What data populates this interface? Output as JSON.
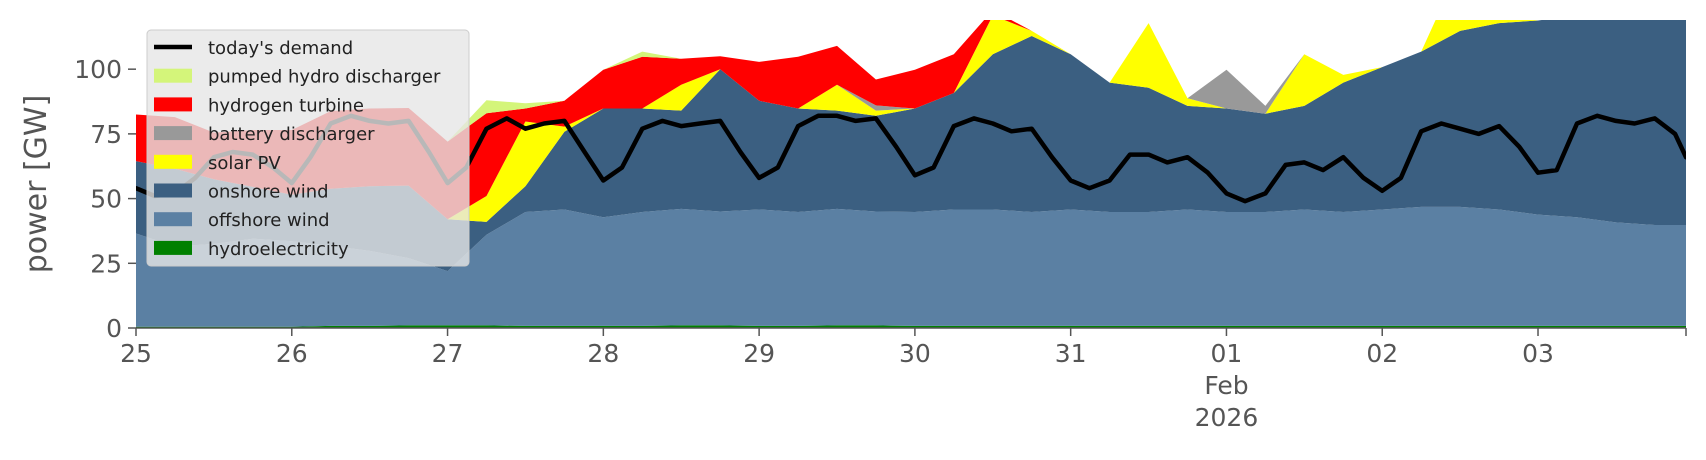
{
  "chart_data": {
    "type": "area",
    "ylabel": "power [GW]",
    "ylim": [
      0,
      119
    ],
    "yticks": [
      0,
      25,
      50,
      75,
      100
    ],
    "xlim_days": [
      25,
      34.95
    ],
    "xticks": [
      {
        "day": 25,
        "label": "25"
      },
      {
        "day": 26,
        "label": "26"
      },
      {
        "day": 27,
        "label": "27"
      },
      {
        "day": 28,
        "label": "28"
      },
      {
        "day": 29,
        "label": "29"
      },
      {
        "day": 30,
        "label": "30"
      },
      {
        "day": 31,
        "label": "31"
      },
      {
        "day": 32,
        "label": "01"
      },
      {
        "day": 33,
        "label": "02"
      },
      {
        "day": 34,
        "label": "03"
      }
    ],
    "month_label": "Feb",
    "year_label": "2026",
    "background": "#ffffff",
    "legend_position": "upper-left",
    "legend": [
      {
        "label": "today's demand",
        "color": "#000000",
        "kind": "line"
      },
      {
        "label": "pumped hydro discharger",
        "color": "#d4f57a",
        "kind": "patch"
      },
      {
        "label": "hydrogen turbine",
        "color": "#ff0000",
        "kind": "patch"
      },
      {
        "label": "battery discharger",
        "color": "#999999",
        "kind": "patch"
      },
      {
        "label": "solar PV",
        "color": "#ffff00",
        "kind": "patch"
      },
      {
        "label": "onshore wind",
        "color": "#3b5f81",
        "kind": "patch"
      },
      {
        "label": "offshore wind",
        "color": "#5b80a3",
        "kind": "patch"
      },
      {
        "label": "hydroelectricity",
        "color": "#008000",
        "kind": "patch"
      }
    ],
    "x_days": [
      25,
      25.25,
      25.5,
      25.75,
      26,
      26.25,
      26.5,
      26.75,
      27,
      27.25,
      27.5,
      27.75,
      28,
      28.25,
      28.5,
      28.75,
      29,
      29.25,
      29.5,
      29.75,
      30,
      30.25,
      30.5,
      30.75,
      31,
      31.25,
      31.5,
      31.75,
      32,
      32.25,
      32.5,
      32.75,
      33,
      33.25,
      33.5,
      33.75,
      34,
      34.25,
      34.5,
      34.75,
      34.95
    ],
    "series": [
      {
        "name": "hydroelectricity",
        "color": "#008000",
        "values": [
          0.5,
          0.5,
          0.5,
          0.5,
          0.5,
          0.8,
          0.8,
          1.0,
          1.0,
          1.0,
          0.8,
          0.8,
          0.8,
          0.8,
          1.0,
          1.0,
          0.8,
          0.8,
          1.0,
          1.0,
          0.8,
          0.8,
          0.8,
          0.8,
          0.8,
          0.8,
          0.8,
          0.8,
          0.8,
          0.8,
          0.8,
          0.8,
          0.8,
          0.8,
          0.8,
          0.8,
          0.8,
          0.8,
          0.8,
          0.8,
          0.8
        ]
      },
      {
        "name": "offshore wind",
        "color": "#5b80a3",
        "values": [
          36,
          31,
          32,
          34,
          33,
          31,
          29,
          26,
          21,
          35,
          44,
          45,
          42,
          44,
          45,
          44,
          45,
          44,
          45,
          44,
          44,
          45,
          45,
          44,
          45,
          44,
          44,
          45,
          44,
          44,
          45,
          44,
          45,
          46,
          46,
          45,
          43,
          42,
          40,
          39,
          39
        ]
      },
      {
        "name": "onshore wind",
        "color": "#3b5f81",
        "values": [
          28,
          30,
          25,
          20,
          18,
          22,
          25,
          28,
          20,
          5,
          10,
          30,
          42,
          40,
          38,
          55,
          42,
          40,
          38,
          37,
          40,
          45,
          60,
          68,
          60,
          50,
          48,
          40,
          40,
          38,
          40,
          50,
          55,
          60,
          68,
          72,
          75,
          78,
          79,
          80,
          80
        ]
      },
      {
        "name": "solar PV",
        "color": "#ffff00",
        "values": [
          0,
          0,
          0,
          0,
          0,
          0,
          0,
          0,
          0,
          10,
          25,
          2,
          0,
          0,
          10,
          0,
          0,
          0,
          10,
          2,
          0,
          0,
          15,
          2,
          0,
          0,
          25,
          3,
          0,
          0,
          20,
          3,
          0,
          0,
          25,
          3,
          0,
          0,
          15,
          2,
          0
        ]
      },
      {
        "name": "battery discharger",
        "color": "#999999",
        "values": [
          0,
          0,
          0,
          0,
          0,
          0,
          0,
          0,
          0,
          0,
          0,
          0,
          0,
          0,
          0,
          0,
          0,
          0,
          0,
          2,
          0,
          0,
          0,
          0,
          0,
          0,
          0,
          0,
          15,
          3,
          0,
          0,
          0,
          0,
          0,
          0,
          0,
          0,
          0,
          0,
          0
        ]
      },
      {
        "name": "hydrogen turbine",
        "color": "#ff0000",
        "values": [
          18,
          20,
          18,
          22,
          25,
          30,
          30,
          30,
          30,
          32,
          5,
          10,
          15,
          20,
          10,
          5,
          15,
          20,
          15,
          10,
          15,
          15,
          2,
          0,
          0,
          0,
          0,
          0,
          0,
          0,
          0,
          0,
          0,
          0,
          0,
          0,
          0,
          0,
          0,
          0,
          0
        ]
      },
      {
        "name": "pumped hydro discharger",
        "color": "#d4f57a",
        "values": [
          0,
          0,
          0,
          0,
          0,
          0,
          0,
          0,
          0,
          5,
          2,
          0,
          0,
          2,
          0,
          0,
          0,
          0,
          0,
          0,
          0,
          0,
          0,
          0,
          0,
          0,
          0,
          0,
          0,
          0,
          0,
          0,
          0,
          0,
          0,
          0,
          0,
          0,
          0,
          0,
          0
        ]
      }
    ],
    "demand": {
      "name": "today's demand",
      "color": "#000000",
      "x_days": [
        25,
        25.12,
        25.25,
        25.38,
        25.5,
        25.62,
        25.75,
        25.88,
        26,
        26.12,
        26.25,
        26.38,
        26.5,
        26.62,
        26.75,
        26.88,
        27,
        27.12,
        27.25,
        27.38,
        27.5,
        27.62,
        27.75,
        27.88,
        28,
        28.12,
        28.25,
        28.38,
        28.5,
        28.62,
        28.75,
        28.88,
        29,
        29.12,
        29.25,
        29.38,
        29.5,
        29.62,
        29.75,
        29.88,
        30,
        30.12,
        30.25,
        30.38,
        30.5,
        30.62,
        30.75,
        30.88,
        31,
        31.12,
        31.25,
        31.38,
        31.5,
        31.62,
        31.75,
        31.88,
        32,
        32.12,
        32.25,
        32.38,
        32.5,
        32.62,
        32.75,
        32.88,
        33,
        33.12,
        33.25,
        33.38,
        33.5,
        33.62,
        33.75,
        33.88,
        34,
        34.12,
        34.25,
        34.38,
        34.5,
        34.62,
        34.75,
        34.88,
        34.95
      ],
      "values": [
        54,
        51,
        52,
        58,
        66,
        68,
        67,
        62,
        56,
        66,
        79,
        82,
        80,
        79,
        80,
        68,
        56,
        62,
        77,
        81,
        77,
        79,
        80,
        68,
        57,
        62,
        77,
        80,
        78,
        79,
        80,
        68,
        58,
        62,
        78,
        82,
        82,
        80,
        81,
        70,
        59,
        62,
        78,
        81,
        79,
        76,
        77,
        66,
        57,
        54,
        57,
        67,
        67,
        64,
        66,
        60,
        52,
        49,
        52,
        63,
        64,
        61,
        66,
        58,
        53,
        58,
        76,
        79,
        77,
        75,
        78,
        70,
        60,
        61,
        79,
        82,
        80,
        79,
        81,
        75,
        66
      ]
    }
  }
}
